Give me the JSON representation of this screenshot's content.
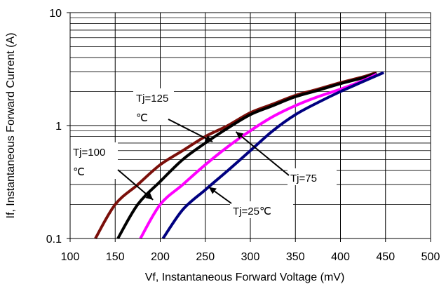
{
  "chart_data": {
    "type": "line",
    "x_scale": "linear",
    "y_scale": "log",
    "xlabel": "Vf, Instantaneous Forward  Voltage (mV)",
    "ylabel": "If, Instantaneous Forward Current (A)",
    "xlim": [
      100,
      500
    ],
    "ylim": [
      0.1,
      10
    ],
    "x_ticks": [
      "100",
      "150",
      "200",
      "250",
      "300",
      "350",
      "400",
      "450",
      "500"
    ],
    "y_ticks": [
      "0.1",
      "1",
      "10"
    ],
    "grid": true,
    "series": [
      {
        "name": "Tj=125 ℃",
        "color": "#7b0f0a",
        "points": [
          [
            128,
            0.1
          ],
          [
            150,
            0.2
          ],
          [
            175,
            0.3
          ],
          [
            200,
            0.45
          ],
          [
            225,
            0.6
          ],
          [
            250,
            0.8
          ],
          [
            275,
            1.0
          ],
          [
            300,
            1.3
          ],
          [
            325,
            1.55
          ],
          [
            350,
            1.85
          ],
          [
            375,
            2.1
          ],
          [
            400,
            2.4
          ],
          [
            425,
            2.7
          ],
          [
            440,
            2.95
          ]
        ]
      },
      {
        "name": "Tj=100 ℃",
        "color": "#000000",
        "points": [
          [
            153,
            0.1
          ],
          [
            175,
            0.2
          ],
          [
            200,
            0.32
          ],
          [
            225,
            0.5
          ],
          [
            250,
            0.7
          ],
          [
            275,
            0.95
          ],
          [
            300,
            1.25
          ],
          [
            325,
            1.5
          ],
          [
            350,
            1.8
          ],
          [
            375,
            2.05
          ],
          [
            400,
            2.35
          ],
          [
            425,
            2.65
          ],
          [
            440,
            2.9
          ]
        ]
      },
      {
        "name": "Tj=75",
        "color": "#ff00ff",
        "points": [
          [
            178,
            0.1
          ],
          [
            200,
            0.2
          ],
          [
            225,
            0.3
          ],
          [
            250,
            0.45
          ],
          [
            275,
            0.65
          ],
          [
            300,
            0.9
          ],
          [
            325,
            1.2
          ],
          [
            350,
            1.5
          ],
          [
            375,
            1.8
          ],
          [
            400,
            2.1
          ],
          [
            425,
            2.5
          ],
          [
            440,
            2.85
          ]
        ]
      },
      {
        "name": "Tj=25℃",
        "color": "#000080",
        "points": [
          [
            203,
            0.1
          ],
          [
            225,
            0.18
          ],
          [
            250,
            0.27
          ],
          [
            275,
            0.4
          ],
          [
            300,
            0.6
          ],
          [
            325,
            0.9
          ],
          [
            350,
            1.25
          ],
          [
            375,
            1.6
          ],
          [
            400,
            2.0
          ],
          [
            425,
            2.45
          ],
          [
            448,
            2.95
          ]
        ]
      }
    ],
    "annotations": [
      {
        "lines": [
          "Tj=125",
          "℃"
        ],
        "target": [
          258,
          0.72
        ]
      },
      {
        "lines": [
          "Tj=100",
          "℃"
        ],
        "target": [
          192,
          0.22
        ]
      },
      {
        "lines": [
          "Tj=75"
        ],
        "target": [
          284,
          0.88
        ]
      },
      {
        "lines": [
          "Tj=25℃"
        ],
        "target": [
          254,
          0.285
        ]
      }
    ]
  }
}
